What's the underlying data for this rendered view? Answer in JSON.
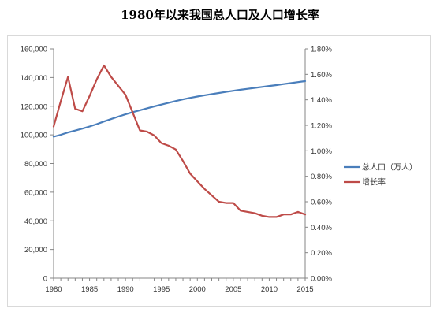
{
  "chart_data": {
    "type": "line",
    "title": "1980年以来我国总人口及人口增长率",
    "x": [
      1980,
      1981,
      1982,
      1983,
      1984,
      1985,
      1986,
      1987,
      1988,
      1989,
      1990,
      1991,
      1992,
      1993,
      1994,
      1995,
      1996,
      1997,
      1998,
      1999,
      2000,
      2001,
      2002,
      2003,
      2004,
      2005,
      2006,
      2007,
      2008,
      2009,
      2010,
      2011,
      2012,
      2013,
      2014,
      2015
    ],
    "x_ticks": [
      "1980",
      "1985",
      "1990",
      "1995",
      "2000",
      "2005",
      "2010",
      "2015"
    ],
    "xlim": [
      1980,
      2015
    ],
    "y_left": {
      "lim": [
        0,
        160000
      ],
      "ticks": [
        "0",
        "20,000",
        "40,000",
        "60,000",
        "80,000",
        "100,000",
        "120,000",
        "140,000",
        "160,000"
      ]
    },
    "y_right": {
      "lim": [
        0,
        1.8
      ],
      "ticks": [
        "0.00%",
        "0.20%",
        "0.40%",
        "0.60%",
        "0.80%",
        "1.00%",
        "1.20%",
        "1.40%",
        "1.60%",
        "1.80%"
      ]
    },
    "grid": false,
    "legend_position": "right",
    "series": [
      {
        "name": "总人口（万人）",
        "axis": "left",
        "color": "#4a7ebb",
        "values": [
          98705,
          100072,
          101654,
          103008,
          104357,
          105851,
          107507,
          109300,
          111026,
          112704,
          114333,
          115823,
          117171,
          118517,
          119850,
          121121,
          122389,
          123626,
          124761,
          125786,
          126743,
          127627,
          128453,
          129227,
          129988,
          130756,
          131448,
          132129,
          132802,
          133450,
          134091,
          134735,
          135404,
          136072,
          136782,
          137462
        ]
      },
      {
        "name": "增长率",
        "axis": "right",
        "color": "#be4b48",
        "values": [
          1.19,
          1.39,
          1.58,
          1.33,
          1.31,
          1.43,
          1.56,
          1.67,
          1.58,
          1.51,
          1.44,
          1.3,
          1.16,
          1.15,
          1.12,
          1.06,
          1.04,
          1.01,
          0.92,
          0.82,
          0.76,
          0.7,
          0.65,
          0.6,
          0.59,
          0.59,
          0.53,
          0.52,
          0.51,
          0.49,
          0.48,
          0.48,
          0.5,
          0.5,
          0.52,
          0.5
        ]
      }
    ]
  }
}
